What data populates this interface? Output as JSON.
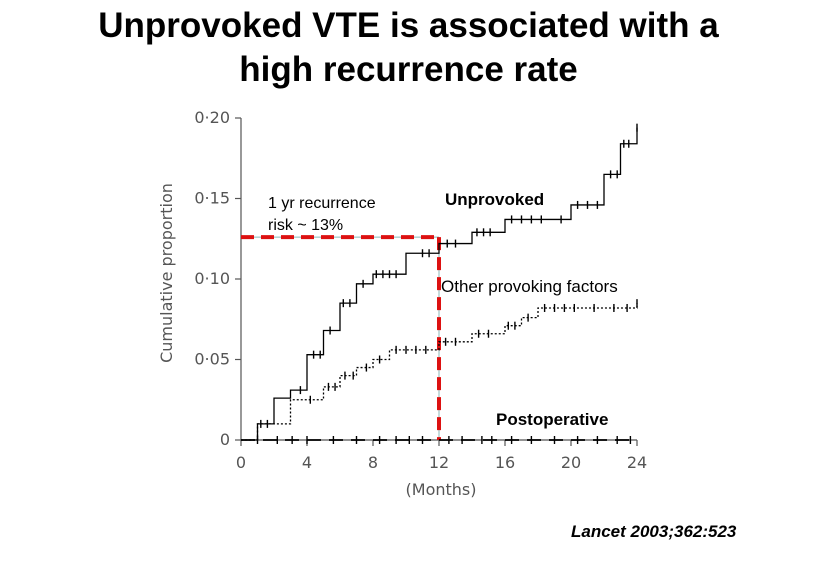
{
  "title_lines": [
    "Unprovoked VTE is associated with a",
    "high recurrence rate"
  ],
  "citation": "Lancet 2003;362:523",
  "chart_data": {
    "type": "line",
    "title": "Unprovoked VTE is associated with a high recurrence rate",
    "xlabel": "(Months)",
    "ylabel": "Cumulative proportion",
    "xlim": [
      0,
      24
    ],
    "ylim": [
      0,
      0.2
    ],
    "xticks": [
      0,
      4,
      8,
      12,
      16,
      20,
      24
    ],
    "xtick_labels": [
      "0",
      "4",
      "8",
      "12",
      "16",
      "20",
      "24"
    ],
    "yticks": [
      0,
      0.05,
      0.1,
      0.15,
      0.2
    ],
    "ytick_labels": [
      "0",
      "0·05",
      "0·10",
      "0·15",
      "0·20"
    ],
    "grid": false,
    "legend": "none",
    "series": [
      {
        "name": "Unprovoked",
        "style": "solid",
        "color": "#000000",
        "steps": [
          [
            0,
            0
          ],
          [
            1,
            0.01
          ],
          [
            2,
            0.026
          ],
          [
            3,
            0.031
          ],
          [
            4,
            0.053
          ],
          [
            5,
            0.068
          ],
          [
            6,
            0.085
          ],
          [
            7,
            0.097
          ],
          [
            8,
            0.103
          ],
          [
            10,
            0.116
          ],
          [
            12,
            0.122
          ],
          [
            14,
            0.129
          ],
          [
            16,
            0.137
          ],
          [
            20,
            0.146
          ],
          [
            22,
            0.165
          ],
          [
            23,
            0.184
          ],
          [
            24,
            0.194
          ]
        ],
        "censor_marks": [
          [
            1.2,
            0.01
          ],
          [
            3.6,
            0.031
          ],
          [
            4.4,
            0.053
          ],
          [
            4.8,
            0.053
          ],
          [
            5.4,
            0.068
          ],
          [
            6.2,
            0.085
          ],
          [
            6.6,
            0.085
          ],
          [
            7.4,
            0.097
          ],
          [
            8.2,
            0.103
          ],
          [
            8.6,
            0.103
          ],
          [
            9.0,
            0.103
          ],
          [
            9.4,
            0.103
          ],
          [
            11.0,
            0.116
          ],
          [
            11.4,
            0.116
          ],
          [
            12.5,
            0.122
          ],
          [
            13.0,
            0.122
          ],
          [
            14.3,
            0.129
          ],
          [
            14.7,
            0.129
          ],
          [
            15.1,
            0.129
          ],
          [
            16.4,
            0.137
          ],
          [
            17.0,
            0.137
          ],
          [
            17.6,
            0.137
          ],
          [
            18.2,
            0.137
          ],
          [
            19.4,
            0.137
          ],
          [
            20.4,
            0.146
          ],
          [
            21.0,
            0.146
          ],
          [
            21.6,
            0.146
          ],
          [
            22.4,
            0.165
          ],
          [
            22.8,
            0.165
          ],
          [
            23.2,
            0.184
          ],
          [
            23.5,
            0.184
          ],
          [
            24,
            0.194
          ]
        ]
      },
      {
        "name": "Other provoking factors",
        "style": "dotted",
        "color": "#000000",
        "steps": [
          [
            0,
            0
          ],
          [
            1,
            0.01
          ],
          [
            3,
            0.025
          ],
          [
            5,
            0.033
          ],
          [
            6,
            0.04
          ],
          [
            7,
            0.045
          ],
          [
            8,
            0.05
          ],
          [
            9,
            0.056
          ],
          [
            12,
            0.061
          ],
          [
            14,
            0.066
          ],
          [
            16,
            0.071
          ],
          [
            17,
            0.076
          ],
          [
            18,
            0.082
          ],
          [
            24,
            0.085
          ]
        ],
        "censor_marks": [
          [
            1.6,
            0.01
          ],
          [
            4.2,
            0.025
          ],
          [
            5.3,
            0.033
          ],
          [
            5.7,
            0.033
          ],
          [
            6.3,
            0.04
          ],
          [
            6.8,
            0.04
          ],
          [
            7.6,
            0.045
          ],
          [
            8.4,
            0.05
          ],
          [
            9.4,
            0.056
          ],
          [
            10.0,
            0.056
          ],
          [
            10.6,
            0.056
          ],
          [
            11.2,
            0.056
          ],
          [
            12.4,
            0.061
          ],
          [
            13.0,
            0.061
          ],
          [
            14.4,
            0.066
          ],
          [
            15.0,
            0.066
          ],
          [
            16.2,
            0.071
          ],
          [
            16.6,
            0.071
          ],
          [
            17.4,
            0.076
          ],
          [
            18.4,
            0.082
          ],
          [
            19.0,
            0.082
          ],
          [
            19.6,
            0.082
          ],
          [
            20.2,
            0.082
          ],
          [
            21.4,
            0.082
          ],
          [
            22.6,
            0.082
          ],
          [
            23.4,
            0.082
          ],
          [
            24,
            0.085
          ]
        ]
      },
      {
        "name": "Postoperative",
        "style": "dashed",
        "color": "#000000",
        "steps": [
          [
            0,
            0
          ],
          [
            24,
            0
          ]
        ],
        "censor_marks": [
          [
            1.0,
            0
          ],
          [
            2.2,
            0
          ],
          [
            3.1,
            0
          ],
          [
            4.0,
            0
          ],
          [
            5.6,
            0
          ],
          [
            7.0,
            0
          ],
          [
            8.4,
            0
          ],
          [
            9.4,
            0
          ],
          [
            10.2,
            0
          ],
          [
            11.0,
            0
          ],
          [
            12.6,
            0
          ],
          [
            13.4,
            0
          ],
          [
            14.6,
            0
          ],
          [
            15.2,
            0
          ],
          [
            16.4,
            0
          ],
          [
            17.6,
            0
          ],
          [
            19.0,
            0
          ],
          [
            20.4,
            0
          ],
          [
            21.6,
            0
          ],
          [
            22.8,
            0
          ],
          [
            23.6,
            0
          ]
        ]
      }
    ],
    "annotations": {
      "text_lines": [
        "1 yr recurrence",
        "risk ~ 13%"
      ],
      "reference_x": 12,
      "reference_y": 0.126,
      "reference_color": "#dd1111"
    }
  }
}
